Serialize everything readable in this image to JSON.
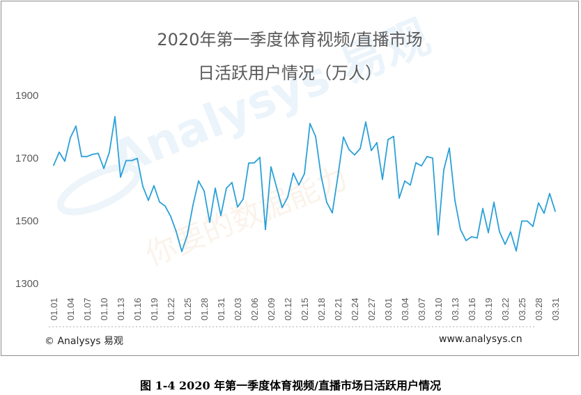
{
  "chart_data": {
    "type": "line",
    "title_line1": "2020年第一季度体育视频/直播市场",
    "title_line2": "日活跃用户情况（万人）",
    "ylim": [
      1300,
      1900
    ],
    "yticks": [
      1300,
      1500,
      1700,
      1900
    ],
    "grid": false,
    "legend": "none",
    "x_tick_labels": [
      "01.01",
      "01.04",
      "01.07",
      "01.10",
      "01.13",
      "01.16",
      "01.19",
      "01.22",
      "01.25",
      "01.28",
      "01.31",
      "02.03",
      "02.06",
      "02.09",
      "02.12",
      "02.15",
      "02.18",
      "02.21",
      "02.24",
      "02.27",
      "03.01",
      "03.04",
      "03.07",
      "03.10",
      "03.13",
      "03.16",
      "03.19",
      "03.22",
      "03.25",
      "03.28",
      "03.31"
    ],
    "x": [
      "01.01",
      "01.02",
      "01.03",
      "01.04",
      "01.05",
      "01.06",
      "01.07",
      "01.08",
      "01.09",
      "01.10",
      "01.11",
      "01.12",
      "01.13",
      "01.14",
      "01.15",
      "01.16",
      "01.17",
      "01.18",
      "01.19",
      "01.20",
      "01.21",
      "01.22",
      "01.23",
      "01.24",
      "01.25",
      "01.26",
      "01.27",
      "01.28",
      "01.29",
      "01.30",
      "01.31",
      "02.01",
      "02.02",
      "02.03",
      "02.04",
      "02.05",
      "02.06",
      "02.07",
      "02.08",
      "02.09",
      "02.10",
      "02.11",
      "02.12",
      "02.13",
      "02.14",
      "02.15",
      "02.16",
      "02.17",
      "02.18",
      "02.19",
      "02.20",
      "02.21",
      "02.22",
      "02.23",
      "02.24",
      "02.25",
      "02.26",
      "02.27",
      "02.28",
      "02.29",
      "03.01",
      "03.02",
      "03.03",
      "03.04",
      "03.05",
      "03.06",
      "03.07",
      "03.08",
      "03.09",
      "03.10",
      "03.11",
      "03.12",
      "03.13",
      "03.14",
      "03.15",
      "03.16",
      "03.17",
      "03.18",
      "03.19",
      "03.20",
      "03.21",
      "03.22",
      "03.23",
      "03.24",
      "03.25",
      "03.26",
      "03.27",
      "03.28",
      "03.29",
      "03.30",
      "03.31"
    ],
    "series": [
      {
        "values": [
          1675,
          1717,
          1688,
          1763,
          1800,
          1703,
          1703,
          1710,
          1713,
          1665,
          1717,
          1830,
          1637,
          1690,
          1690,
          1697,
          1608,
          1563,
          1610,
          1558,
          1545,
          1512,
          1463,
          1400,
          1453,
          1548,
          1625,
          1593,
          1493,
          1602,
          1515,
          1602,
          1620,
          1542,
          1567,
          1682,
          1683,
          1700,
          1470,
          1670,
          1605,
          1540,
          1573,
          1650,
          1612,
          1648,
          1808,
          1767,
          1640,
          1557,
          1523,
          1640,
          1765,
          1725,
          1708,
          1728,
          1813,
          1722,
          1747,
          1630,
          1757,
          1767,
          1570,
          1625,
          1612,
          1683,
          1673,
          1703,
          1698,
          1453,
          1660,
          1730,
          1563,
          1470,
          1435,
          1447,
          1443,
          1537,
          1460,
          1557,
          1463,
          1423,
          1462,
          1402,
          1497,
          1497,
          1480,
          1555,
          1522,
          1585,
          1528
        ]
      }
    ],
    "line_color": "#2ba0d8"
  },
  "watermark": {
    "brand": "Analysys 易观",
    "slogan": "你要的数据能力"
  },
  "footer": {
    "copyright": "© Analysys 易观",
    "website": "www.analysys.cn"
  },
  "caption": "图 1-4 2020 年第一季度体育视频/直播市场日活跃用户情况"
}
